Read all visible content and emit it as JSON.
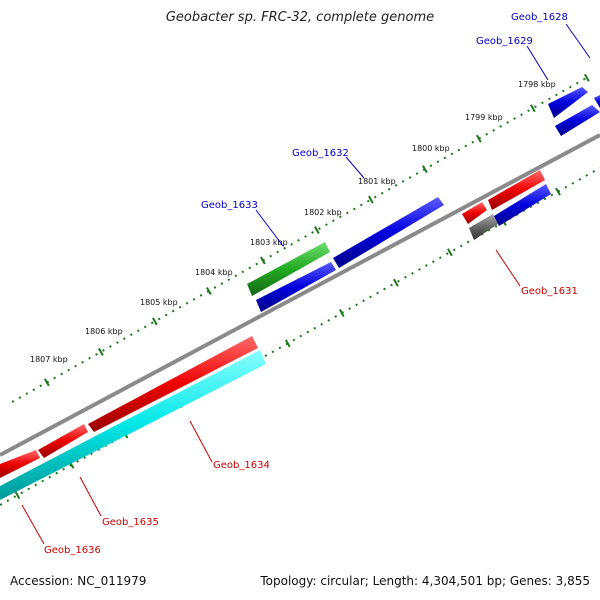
{
  "title": "Geobacter sp. FRC-32, complete genome",
  "footer": {
    "accession": "Accession: NC_011979",
    "summary": "Topology: circular; Length: 4,304,501 bp; Genes: 3,855"
  },
  "colors": {
    "backbone": "#8a8a8a",
    "forward_gene": "#0000dd",
    "reverse_gene": "#ee0000",
    "rna_gene": "#22aa22",
    "cds_other": "#00e6e6",
    "pseudo": "#666666",
    "ticks": "#1a7a1a",
    "label_forward": "#0000cc",
    "label_reverse": "#cc0000"
  },
  "ticks": [
    {
      "label": "1798 kbp"
    },
    {
      "label": "1799 kbp"
    },
    {
      "label": "1800 kbp"
    },
    {
      "label": "1801 kbp"
    },
    {
      "label": "1802 kbp"
    },
    {
      "label": "1803 kbp"
    },
    {
      "label": "1804 kbp"
    },
    {
      "label": "1805 kbp"
    },
    {
      "label": "1806 kbp"
    },
    {
      "label": "1807 kbp"
    }
  ],
  "gene_labels": [
    {
      "name": "Geob_1628",
      "strand": "forward"
    },
    {
      "name": "Geob_1629",
      "strand": "forward"
    },
    {
      "name": "Geob_1632",
      "strand": "forward"
    },
    {
      "name": "Geob_1633",
      "strand": "forward"
    },
    {
      "name": "Geob_1631",
      "strand": "reverse"
    },
    {
      "name": "Geob_1634",
      "strand": "reverse"
    },
    {
      "name": "Geob_1635",
      "strand": "reverse"
    },
    {
      "name": "Geob_1636",
      "strand": "reverse"
    }
  ]
}
